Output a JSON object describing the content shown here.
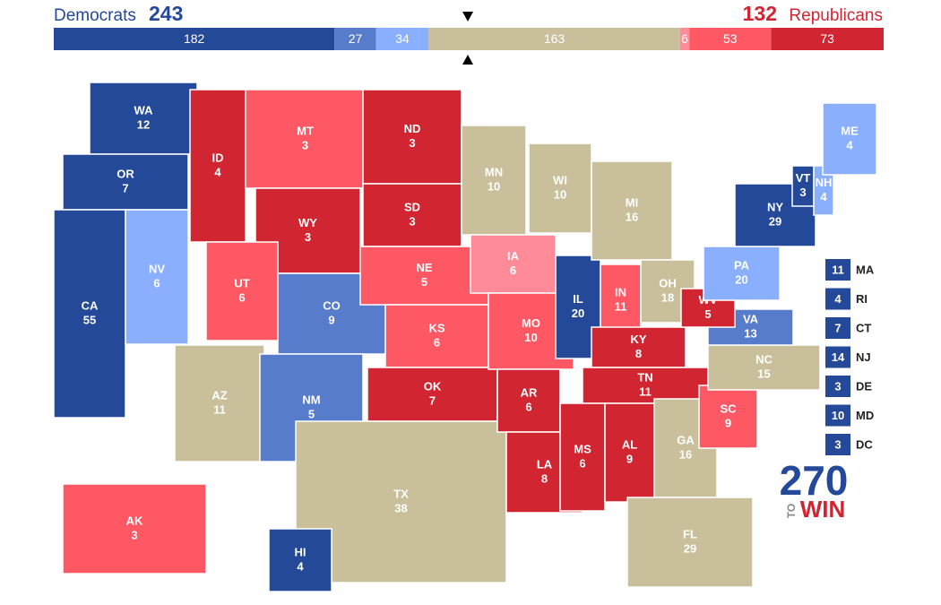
{
  "header": {
    "dem_label": "Democrats",
    "dem_total": 243,
    "rep_total": 132,
    "rep_label": "Republicans"
  },
  "bar": {
    "segments": [
      {
        "value": 182,
        "color": "#244999"
      },
      {
        "value": 27,
        "color": "#577ccc"
      },
      {
        "value": 34,
        "color": "#8aafff"
      },
      {
        "value": 163,
        "color": "#c9c09b"
      },
      {
        "value": 6,
        "color": "#ff8b98"
      },
      {
        "value": 53,
        "color": "#ff5865"
      },
      {
        "value": 73,
        "color": "#d22532"
      }
    ]
  },
  "states": [
    {
      "abbr": "WA",
      "votes": 12,
      "color": "#244999"
    },
    {
      "abbr": "OR",
      "votes": 7,
      "color": "#244999"
    },
    {
      "abbr": "CA",
      "votes": 55,
      "color": "#244999"
    },
    {
      "abbr": "NV",
      "votes": 6,
      "color": "#8aafff"
    },
    {
      "abbr": "ID",
      "votes": 4,
      "color": "#d22532"
    },
    {
      "abbr": "MT",
      "votes": 3,
      "color": "#ff5865"
    },
    {
      "abbr": "WY",
      "votes": 3,
      "color": "#d22532"
    },
    {
      "abbr": "UT",
      "votes": 6,
      "color": "#ff5865"
    },
    {
      "abbr": "CO",
      "votes": 9,
      "color": "#577ccc"
    },
    {
      "abbr": "AZ",
      "votes": 11,
      "color": "#c9c09b"
    },
    {
      "abbr": "NM",
      "votes": 5,
      "color": "#577ccc"
    },
    {
      "abbr": "ND",
      "votes": 3,
      "color": "#d22532"
    },
    {
      "abbr": "SD",
      "votes": 3,
      "color": "#d22532"
    },
    {
      "abbr": "NE",
      "votes": 5,
      "color": "#ff5865"
    },
    {
      "abbr": "KS",
      "votes": 6,
      "color": "#ff5865"
    },
    {
      "abbr": "OK",
      "votes": 7,
      "color": "#d22532"
    },
    {
      "abbr": "TX",
      "votes": 38,
      "color": "#c9c09b"
    },
    {
      "abbr": "MN",
      "votes": 10,
      "color": "#c9c09b"
    },
    {
      "abbr": "IA",
      "votes": 6,
      "color": "#ff8b98"
    },
    {
      "abbr": "MO",
      "votes": 10,
      "color": "#ff5865"
    },
    {
      "abbr": "AR",
      "votes": 6,
      "color": "#d22532"
    },
    {
      "abbr": "LA",
      "votes": 8,
      "color": "#d22532"
    },
    {
      "abbr": "WI",
      "votes": 10,
      "color": "#c9c09b"
    },
    {
      "abbr": "IL",
      "votes": 20,
      "color": "#244999"
    },
    {
      "abbr": "MI",
      "votes": 16,
      "color": "#c9c09b"
    },
    {
      "abbr": "IN",
      "votes": 11,
      "color": "#ff5865"
    },
    {
      "abbr": "OH",
      "votes": 18,
      "color": "#c9c09b"
    },
    {
      "abbr": "KY",
      "votes": 8,
      "color": "#d22532"
    },
    {
      "abbr": "TN",
      "votes": 11,
      "color": "#d22532"
    },
    {
      "abbr": "MS",
      "votes": 6,
      "color": "#d22532"
    },
    {
      "abbr": "AL",
      "votes": 9,
      "color": "#d22532"
    },
    {
      "abbr": "GA",
      "votes": 16,
      "color": "#c9c09b"
    },
    {
      "abbr": "FL",
      "votes": 29,
      "color": "#c9c09b"
    },
    {
      "abbr": "SC",
      "votes": 9,
      "color": "#ff5865"
    },
    {
      "abbr": "NC",
      "votes": 15,
      "color": "#c9c09b"
    },
    {
      "abbr": "VA",
      "votes": 13,
      "color": "#577ccc"
    },
    {
      "abbr": "WV",
      "votes": 5,
      "color": "#d22532"
    },
    {
      "abbr": "PA",
      "votes": 20,
      "color": "#8aafff"
    },
    {
      "abbr": "NY",
      "votes": 29,
      "color": "#244999"
    },
    {
      "abbr": "VT",
      "votes": 3,
      "color": "#244999"
    },
    {
      "abbr": "NH",
      "votes": 4,
      "color": "#8aafff"
    },
    {
      "abbr": "ME",
      "votes": 4,
      "color": "#8aafff"
    },
    {
      "abbr": "HI",
      "votes": 4,
      "color": "#244999"
    },
    {
      "abbr": "AK",
      "votes": 3,
      "color": "#ff5865"
    }
  ],
  "small_states": [
    {
      "abbr": "MA",
      "votes": 11,
      "color": "#244999"
    },
    {
      "abbr": "RI",
      "votes": 4,
      "color": "#244999"
    },
    {
      "abbr": "CT",
      "votes": 7,
      "color": "#244999"
    },
    {
      "abbr": "NJ",
      "votes": 14,
      "color": "#244999"
    },
    {
      "abbr": "DE",
      "votes": 3,
      "color": "#244999"
    },
    {
      "abbr": "MD",
      "votes": 10,
      "color": "#244999"
    },
    {
      "abbr": "DC",
      "votes": 3,
      "color": "#244999"
    }
  ],
  "logo": {
    "number": "270",
    "to": "TO",
    "win": "WIN"
  }
}
